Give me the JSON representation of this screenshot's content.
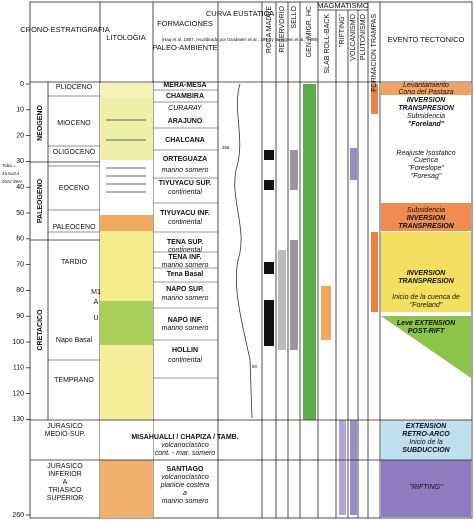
{
  "header": {
    "chronostratigraphy": "CRONO-ESTRATIGRAFIA",
    "lithology": "LITOLOGIA",
    "formations": "FORMACIONES",
    "paleoenvironment": "PALEO-AMBIENTE",
    "curve": "CURVA EUSTATICA",
    "curve_source": "(Haq et al. 1987, recalibrada por Gradstein et al., 1994 y Berggren et al., 1995)",
    "magmatism": "MAGMATISMO",
    "tectonic_event": "EVENTO TECTONICO",
    "vertical": [
      "ROCA MADRE",
      "RESERVORIO",
      "SELLO",
      "GEN./MIGR. HC",
      "SLAB ROLL-BACK",
      "\"RIFTING\"",
      "VOLCANISMO",
      "PLUTONISMO",
      "FORMACION TRAMPAS"
    ]
  },
  "age_ticks": [
    0,
    10,
    20,
    30,
    40,
    50,
    60,
    70,
    80,
    90,
    100,
    110,
    120,
    130,
    260
  ],
  "periods": [
    "NEOGENO",
    "PALEOGENO",
    "CRETACICO"
  ],
  "lower_units": [
    "JURASICO",
    "MEDIO-SUP.",
    "JURASICO",
    "INFERIOR",
    "A",
    "TRIASICO",
    "SUPERIOR"
  ],
  "epochs": [
    "PLIOCENO",
    "MIOCENO",
    "OLIGOCENO",
    "EOCENO",
    "PALEOCENO",
    "TARDIO",
    "M1",
    "A",
    "U",
    "Napo Basal",
    "TEMPRANO"
  ],
  "annotations": [
    "Toba =",
    "46.6±3.4",
    "40Ar-39Ar",
    "265",
    "90"
  ],
  "formation_lines": [
    "MERA-MESA",
    "CHAMBIRA",
    "CURARAY",
    "ARAJUNO",
    "CHALCANA",
    "ORTEGUAZA",
    "marino somero",
    "TIYUYACU SUP.",
    "continental",
    "TIYUYACU INF.",
    "continental",
    "TENA SUP.",
    "continental",
    "TENA INF.",
    "marino somero",
    "Tena Basal",
    "NAPO SUP.",
    "marino somero",
    "NAPO INF.",
    "marino somero",
    "HOLLIN",
    "continental",
    "MISAHUALLI / CHAPIZA / TAMB.",
    "volcanoclastico",
    "cont. - mar. somero",
    "SANTIAGO",
    "volcanoclastico",
    "planicie costera",
    "a",
    "marino somero"
  ],
  "event_lines": [
    "Levantamiento",
    "Cono del Pastaza",
    "INVERSION",
    "TRANSPRESION",
    "Subsidencia",
    "\"Foreland\"",
    "Reajuste Isostatico",
    "Cuenca",
    "\"Foreslope\"",
    "\"Foresag\"",
    "Subsidencia",
    "INVERSION",
    "TRANSPRESION",
    "INVERSION",
    "TRANSPRESION",
    "Inicio de la cuenca de",
    "\"Foreland\"",
    "Leve EXTENSION",
    "POST-RIFT",
    "EXTENSION",
    "RETRO-ARCO",
    "Inicio de la",
    "SUBDUCCION",
    "\"RIFTING\""
  ]
}
